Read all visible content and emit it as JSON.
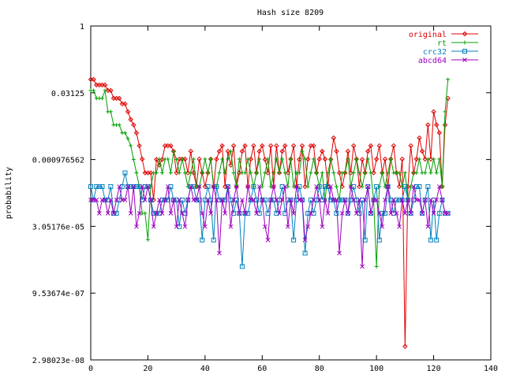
{
  "chart_data": {
    "type": "line",
    "title": "Hash size 8209",
    "xlabel": "",
    "ylabel": "probability",
    "xlim": [
      0,
      140
    ],
    "x_ticks": [
      0,
      20,
      40,
      60,
      80,
      100,
      120,
      140
    ],
    "y_scale": "log2",
    "ylim": [
      2.98023e-08,
      1
    ],
    "y_ticks": [
      {
        "value": 1,
        "label": "1"
      },
      {
        "value": 0.03125,
        "label": "0.03125"
      },
      {
        "value": 0.000976562,
        "label": "0.000976562"
      },
      {
        "value": 3.05176e-05,
        "label": "3.05176e-05"
      },
      {
        "value": 9.53674e-07,
        "label": "9.53674e-07"
      },
      {
        "value": 2.98023e-08,
        "label": "2.98023e-08"
      }
    ],
    "legend_position": "top-right",
    "grid": false,
    "series": [
      {
        "name": "original",
        "color": "#e00000",
        "marker": "diamond",
        "x": [
          0,
          1,
          2,
          3,
          4,
          5,
          6,
          7,
          8,
          9,
          10,
          11,
          12,
          13,
          14,
          15,
          16,
          17,
          18,
          19,
          20,
          21,
          22,
          23,
          24,
          25,
          26,
          27,
          28,
          29,
          30,
          31,
          32,
          33,
          34,
          35,
          36,
          37,
          38,
          39,
          40,
          41,
          42,
          43,
          44,
          45,
          46,
          47,
          48,
          49,
          50,
          51,
          52,
          53,
          54,
          55,
          56,
          57,
          58,
          59,
          60,
          61,
          62,
          63,
          64,
          65,
          66,
          67,
          68,
          69,
          70,
          71,
          72,
          73,
          74,
          75,
          76,
          77,
          78,
          79,
          80,
          81,
          82,
          83,
          84,
          85,
          86,
          87,
          88,
          89,
          90,
          91,
          92,
          93,
          94,
          95,
          96,
          97,
          98,
          99,
          100,
          101,
          102,
          103,
          104,
          105,
          106,
          107,
          108,
          109,
          110,
          111,
          112,
          113,
          114,
          115,
          116,
          117,
          118,
          119,
          120,
          121,
          122,
          123,
          124,
          125
        ],
        "y": [
          0.0625,
          0.0625,
          0.0469,
          0.0469,
          0.0469,
          0.0469,
          0.0352,
          0.0352,
          0.0234,
          0.0234,
          0.0234,
          0.0176,
          0.0176,
          0.0117,
          0.0078,
          0.0059,
          0.0039,
          0.002,
          0.001,
          0.00049,
          0.00049,
          0.00049,
          0.00012,
          0.00098,
          0.00073,
          0.00098,
          0.002,
          0.002,
          0.002,
          0.0015,
          0.00049,
          0.001,
          0.001,
          0.001,
          0.00049,
          0.0015,
          0.00049,
          0.00024,
          0.001,
          0.00049,
          0.00024,
          0.00049,
          0.001,
          0.00024,
          0.001,
          0.0015,
          0.002,
          0.00024,
          0.0015,
          0.00073,
          0.002,
          0.00024,
          0.00049,
          0.0015,
          0.002,
          0.00024,
          0.001,
          0.002,
          0.00049,
          0.0015,
          0.002,
          0.00098,
          0.00049,
          0.002,
          0.00024,
          0.002,
          0.00049,
          0.0015,
          0.002,
          0.00049,
          0.001,
          0.002,
          0.00024,
          0.00098,
          0.002,
          0.00024,
          0.001,
          0.002,
          0.002,
          0.00049,
          0.001,
          0.0015,
          0.001,
          0.00024,
          0.00098,
          0.003,
          0.0015,
          0.00049,
          0.00024,
          0.00049,
          0.0015,
          0.00049,
          0.002,
          0.001,
          0.00024,
          0.00098,
          0.00049,
          0.0015,
          0.002,
          0.00049,
          0.001,
          0.002,
          0.00049,
          0.001,
          0.00024,
          0.001,
          0.002,
          0.00049,
          0.00024,
          0.001,
          6e-08,
          0.00024,
          0.002,
          0.00049,
          0.001,
          0.003,
          0.0015,
          0.001,
          0.0059,
          0.001,
          0.0117,
          0.0059,
          0.0039,
          0.00024,
          0.0059,
          0.0234
        ]
      },
      {
        "name": "rt",
        "color": "#00a000",
        "marker": "plus",
        "x": [
          0,
          1,
          2,
          3,
          4,
          5,
          6,
          7,
          8,
          9,
          10,
          11,
          12,
          13,
          14,
          15,
          16,
          17,
          18,
          19,
          20,
          21,
          22,
          23,
          24,
          25,
          26,
          27,
          28,
          29,
          30,
          31,
          32,
          33,
          34,
          35,
          36,
          37,
          38,
          39,
          40,
          41,
          42,
          43,
          44,
          45,
          46,
          47,
          48,
          49,
          50,
          51,
          52,
          53,
          54,
          55,
          56,
          57,
          58,
          59,
          60,
          61,
          62,
          63,
          64,
          65,
          66,
          67,
          68,
          69,
          70,
          71,
          72,
          73,
          74,
          75,
          76,
          77,
          78,
          79,
          80,
          81,
          82,
          83,
          84,
          85,
          86,
          87,
          88,
          89,
          90,
          91,
          92,
          93,
          94,
          95,
          96,
          97,
          98,
          99,
          100,
          101,
          102,
          103,
          104,
          105,
          106,
          107,
          108,
          109,
          110,
          111,
          112,
          113,
          114,
          115,
          116,
          117,
          118,
          119,
          120,
          121,
          122,
          123,
          124,
          125
        ],
        "y": [
          0.0352,
          0.0352,
          0.0234,
          0.0234,
          0.0234,
          0.0352,
          0.0117,
          0.0117,
          0.0059,
          0.0059,
          0.0059,
          0.0039,
          0.0039,
          0.0029,
          0.002,
          0.00098,
          0.00049,
          0.00024,
          6e-05,
          6e-05,
          1.53e-05,
          0.00024,
          0.00049,
          0.00049,
          0.001,
          0.00049,
          0.001,
          0.001,
          0.00049,
          0.0015,
          0.00098,
          0.00049,
          0.001,
          0.00049,
          0.00024,
          0.00049,
          0.001,
          0.00024,
          0.00024,
          0.00049,
          0.001,
          0.00049,
          0.001,
          0.00024,
          0.00024,
          0.00049,
          0.001,
          0.00049,
          0.001,
          0.0015,
          0.00049,
          0.00024,
          0.001,
          0.00049,
          0.00049,
          0.001,
          0.00049,
          0.00024,
          0.00049,
          0.001,
          0.00024,
          0.00049,
          0.001,
          0.00024,
          0.00049,
          0.001,
          0.00049,
          0.001,
          0.00049,
          0.00024,
          0.001,
          0.00024,
          0.00049,
          0.00049,
          0.0015,
          0.001,
          0.00024,
          0.00049,
          0.001,
          0.00049,
          0.00024,
          0.00049,
          0.00012,
          0.00049,
          0.001,
          0.00049,
          0.00024,
          0.00012,
          0.00049,
          0.00049,
          0.001,
          0.00024,
          0.00049,
          0.001,
          0.00049,
          0.00024,
          0.00049,
          0.001,
          0.00049,
          0.00012,
          3.8e-06,
          0.00024,
          0.00049,
          0.00024,
          0.00049,
          0.001,
          0.00049,
          0.00049,
          0.00049,
          0.00024,
          0.00049,
          0.00012,
          0.00024,
          0.00049,
          0.00049,
          0.001,
          0.00049,
          0.00049,
          0.001,
          0.00049,
          0.001,
          0.00049,
          0.001,
          0.00024,
          0.0117,
          0.0625
        ]
      },
      {
        "name": "crc32",
        "color": "#0080c0",
        "marker": "square",
        "x": [
          0,
          1,
          2,
          3,
          4,
          5,
          6,
          7,
          8,
          9,
          10,
          11,
          12,
          13,
          14,
          15,
          16,
          17,
          18,
          19,
          20,
          21,
          22,
          23,
          24,
          25,
          26,
          27,
          28,
          29,
          30,
          31,
          32,
          33,
          34,
          35,
          36,
          37,
          38,
          39,
          40,
          41,
          42,
          43,
          44,
          45,
          46,
          47,
          48,
          49,
          50,
          51,
          52,
          53,
          54,
          55,
          56,
          57,
          58,
          59,
          60,
          61,
          62,
          63,
          64,
          65,
          66,
          67,
          68,
          69,
          70,
          71,
          72,
          73,
          74,
          75,
          76,
          77,
          78,
          79,
          80,
          81,
          82,
          83,
          84,
          85,
          86,
          87,
          88,
          89,
          90,
          91,
          92,
          93,
          94,
          95,
          96,
          97,
          98,
          99,
          100,
          101,
          102,
          103,
          104,
          105,
          106,
          107,
          108,
          109,
          110,
          111,
          112,
          113,
          114,
          115,
          116,
          117,
          118,
          119,
          120,
          121,
          122,
          123,
          124,
          125
        ],
        "y": [
          0.00024,
          0.00012,
          0.00024,
          0.00024,
          0.00024,
          0.00012,
          0.00012,
          0.00024,
          6e-05,
          6e-05,
          0.00012,
          0.00024,
          0.00049,
          0.00024,
          0.00024,
          0.00024,
          0.00024,
          0.00024,
          0.00012,
          0.00024,
          0.00024,
          0.00012,
          6e-05,
          6e-05,
          6e-05,
          0.00012,
          0.00012,
          0.00012,
          0.00024,
          0.00012,
          0.00012,
          3e-05,
          0.00012,
          6e-05,
          0.00012,
          0.00024,
          0.00024,
          0.00012,
          0.00012,
          1.5e-05,
          0.00012,
          0.00024,
          0.00012,
          1.5e-05,
          0.00024,
          0.00012,
          0.00012,
          0.00012,
          0.00024,
          0.00012,
          6e-05,
          0.00012,
          6e-05,
          3.8e-06,
          6e-05,
          6e-05,
          0.00012,
          0.00024,
          0.00012,
          6e-05,
          0.00012,
          0.00012,
          6e-05,
          0.00012,
          0.00012,
          6e-05,
          0.00012,
          0.00024,
          6e-05,
          0.00012,
          0.00012,
          1.5e-05,
          0.00012,
          0.00024,
          0.00012,
          7.6e-06,
          6e-05,
          0.00012,
          6e-05,
          0.00012,
          0.00024,
          0.00012,
          0.00024,
          0.00024,
          0.00012,
          0.00012,
          6e-05,
          0.00012,
          0.00012,
          0.00012,
          6e-05,
          0.00012,
          0.00024,
          0.00012,
          6e-05,
          0.00012,
          1.5e-05,
          0.00024,
          6e-05,
          0.00012,
          0.00024,
          1.5e-05,
          6e-05,
          6e-05,
          0.00024,
          0.00012,
          6e-05,
          0.00012,
          0.00012,
          0.00012,
          0.00024,
          0.00012,
          6e-05,
          0.00012,
          0.00024,
          0.00024,
          6e-05,
          0.00012,
          0.00024,
          1.5e-05,
          0.00012,
          1.5e-05,
          6e-05,
          0.00012,
          6e-05,
          6e-05
        ]
      },
      {
        "name": "abcd64",
        "color": "#a000c0",
        "marker": "x",
        "x": [
          0,
          1,
          2,
          3,
          4,
          5,
          6,
          7,
          8,
          9,
          10,
          11,
          12,
          13,
          14,
          15,
          16,
          17,
          18,
          19,
          20,
          21,
          22,
          23,
          24,
          25,
          26,
          27,
          28,
          29,
          30,
          31,
          32,
          33,
          34,
          35,
          36,
          37,
          38,
          39,
          40,
          41,
          42,
          43,
          44,
          45,
          46,
          47,
          48,
          49,
          50,
          51,
          52,
          53,
          54,
          55,
          56,
          57,
          58,
          59,
          60,
          61,
          62,
          63,
          64,
          65,
          66,
          67,
          68,
          69,
          70,
          71,
          72,
          73,
          74,
          75,
          76,
          77,
          78,
          79,
          80,
          81,
          82,
          83,
          84,
          85,
          86,
          87,
          88,
          89,
          90,
          91,
          92,
          93,
          94,
          95,
          96,
          97,
          98,
          99,
          100,
          101,
          102,
          103,
          104,
          105,
          106,
          107,
          108,
          109,
          110,
          111,
          112,
          113,
          114,
          115,
          116,
          117,
          118,
          119,
          120,
          121,
          122,
          123,
          124,
          125
        ],
        "y": [
          0.00012,
          0.00012,
          0.00012,
          6e-05,
          0.00012,
          0.00012,
          6e-05,
          0.00012,
          6e-05,
          0.00012,
          0.00024,
          0.00012,
          0.00012,
          0.00024,
          6e-05,
          0.00024,
          3e-05,
          6e-05,
          0.00024,
          0.00012,
          0.00024,
          0.00012,
          3e-05,
          6e-05,
          0.00012,
          6e-05,
          0.00012,
          0.00024,
          6e-05,
          0.00012,
          3e-05,
          0.00012,
          6e-05,
          3e-05,
          0.00012,
          0.00024,
          0.00012,
          0.00012,
          0.00024,
          6e-05,
          3e-05,
          0.00012,
          6e-05,
          0.00024,
          0.00012,
          7.6e-06,
          0.00012,
          6e-05,
          0.00024,
          3e-05,
          0.00012,
          0.00024,
          6e-05,
          0.00012,
          6e-05,
          0.00024,
          0.00012,
          0.00012,
          6e-05,
          0.00024,
          0.00012,
          3e-05,
          1.5e-05,
          0.00012,
          0.00024,
          0.00012,
          6e-05,
          0.00012,
          0.00024,
          3e-05,
          0.00012,
          6e-05,
          0.00024,
          0.00012,
          0.00012,
          1.5e-05,
          3e-05,
          6e-05,
          0.00012,
          0.00024,
          0.00012,
          3e-05,
          0.00012,
          6e-05,
          0.00024,
          0.00012,
          0.00012,
          7.6e-06,
          6e-05,
          0.00012,
          6e-05,
          0.00024,
          0.00012,
          6e-05,
          0.00012,
          3.8e-06,
          0.00012,
          0.00024,
          6e-05,
          0.00012,
          0.00012,
          6e-05,
          3e-05,
          0.00012,
          0.00024,
          6e-05,
          0.00012,
          6e-05,
          3e-05,
          0.00012,
          6e-05,
          0.00012,
          6e-05,
          0.00024,
          0.00012,
          0.00012,
          6e-05,
          0.00012,
          3e-05,
          0.00012,
          6e-05,
          0.00012,
          0.00024,
          0.00012,
          6e-05,
          6e-05
        ]
      }
    ]
  }
}
